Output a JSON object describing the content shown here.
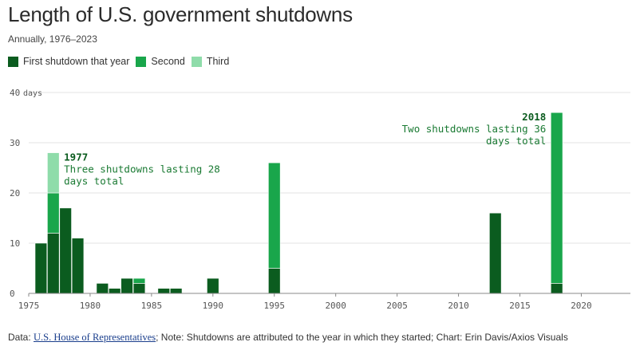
{
  "title": "Length of U.S. government shutdowns",
  "subtitle": "Annually, 1976–2023",
  "legend": {
    "items": [
      {
        "label": "First shutdown that year",
        "color": "#0b5c1f"
      },
      {
        "label": "Second",
        "color": "#19a64b"
      },
      {
        "label": "Third",
        "color": "#8fdcaa"
      }
    ]
  },
  "footer": {
    "prefix": "Data: ",
    "link": "U.S. House of Representatives",
    "suffix": "; Note: Shutdowns are attributed to the year in which they started; Chart: Erin Davis/Axios Visuals"
  },
  "chart_data": {
    "type": "bar",
    "stacked": true,
    "xlim": [
      1975,
      2024
    ],
    "ylim": [
      0,
      40
    ],
    "y_unit_label": "days",
    "x_ticks": [
      1975,
      1980,
      1985,
      1990,
      1995,
      2000,
      2005,
      2010,
      2015,
      2020
    ],
    "y_ticks": [
      0,
      10,
      20,
      30,
      40
    ],
    "grid": true,
    "series": [
      {
        "name": "First shutdown that year",
        "color": "#0b5c1f"
      },
      {
        "name": "Second",
        "color": "#19a64b"
      },
      {
        "name": "Third",
        "color": "#8fdcaa"
      }
    ],
    "data": [
      {
        "year": 1976,
        "values": [
          10
        ]
      },
      {
        "year": 1977,
        "values": [
          12,
          8,
          8
        ]
      },
      {
        "year": 1978,
        "values": [
          17
        ]
      },
      {
        "year": 1979,
        "values": [
          11
        ]
      },
      {
        "year": 1981,
        "values": [
          2
        ]
      },
      {
        "year": 1982,
        "values": [
          1
        ]
      },
      {
        "year": 1983,
        "values": [
          3
        ]
      },
      {
        "year": 1984,
        "values": [
          2,
          1
        ]
      },
      {
        "year": 1986,
        "values": [
          1
        ]
      },
      {
        "year": 1987,
        "values": [
          1
        ]
      },
      {
        "year": 1990,
        "values": [
          3
        ]
      },
      {
        "year": 1995,
        "values": [
          5,
          21
        ]
      },
      {
        "year": 2013,
        "values": [
          16
        ]
      },
      {
        "year": 2018,
        "values": [
          2,
          34
        ]
      }
    ],
    "annotations": [
      {
        "year": 1977,
        "title": "1977",
        "lines": [
          "Three shutdowns lasting 28",
          "days total"
        ],
        "align": "left"
      },
      {
        "year": 2018,
        "title": "2018",
        "lines": [
          "Two shutdowns lasting 36",
          "days total"
        ],
        "align": "right"
      }
    ]
  }
}
